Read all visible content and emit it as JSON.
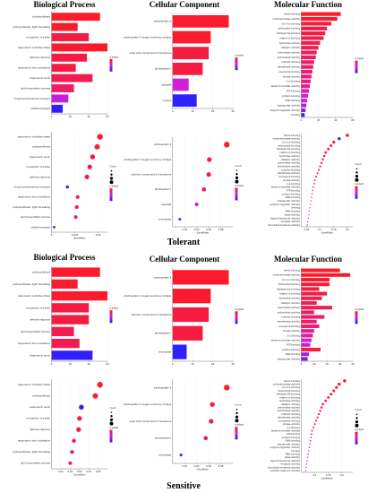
{
  "headings": {
    "biological_process": "Biological Process",
    "cellular_component": "Cellular Component",
    "molecular_function": "Molecular Function"
  },
  "group_labels": {
    "tolerant": "Tolerant",
    "sensitive": "Sensitive"
  },
  "axis_titles": {
    "bar_x": "",
    "dot_x": "GeneRatio"
  },
  "legend_titles": {
    "p": "p.adjust",
    "count": "Count"
  },
  "colors": {
    "gradient_high": "#ff1a1a",
    "gradient_mid": "#d31fd6",
    "gradient_low": "#1f1fff"
  },
  "chart_data": [
    {
      "id": "tol-bp-bar",
      "type": "bar",
      "orientation": "horizontal",
      "categories": [
        "photosynthesis",
        "photosynthesis, light harvesting",
        "recognition of pollen",
        "response to oxidative stress",
        "defense response",
        "response to toxic substance",
        "response to auxin",
        "lipid biosynthetic process",
        "drug transmembrane transport",
        "sulfate transport"
      ],
      "values": [
        52,
        28,
        40,
        60,
        38,
        26,
        44,
        24,
        18,
        12
      ],
      "color_levels": [
        0.95,
        0.95,
        0.9,
        0.95,
        0.9,
        0.9,
        0.85,
        0.8,
        0.45,
        0.05
      ],
      "xlim": [
        0,
        60
      ],
      "xticks": [
        0,
        20,
        40,
        60
      ]
    },
    {
      "id": "tol-cc-bar",
      "type": "bar",
      "orientation": "horizontal",
      "categories": [
        "photosystem II",
        "photosystem II oxygen evolving complex",
        "outer side component of membrane",
        "photosystem I",
        "apoplast",
        "nucleus"
      ],
      "values": [
        28,
        19,
        18,
        15,
        8,
        12
      ],
      "color_levels": [
        0.95,
        0.95,
        0.9,
        0.9,
        0.5,
        0.05
      ],
      "xlim": [
        0,
        30
      ],
      "xticks": [
        0,
        10,
        20,
        30
      ]
    },
    {
      "id": "tol-mf-bar",
      "type": "bar",
      "orientation": "horizontal",
      "categories": [
        "heme binding",
        "oxidoreductase activity",
        "iron ion binding",
        "chlorophyll binding",
        "tetrapyrrole binding",
        "metal ion binding",
        "hydrolase activity",
        "catalytic activity",
        "peroxidase activity",
        "antioxidant activity",
        "cofactor binding",
        "transferase activity",
        "coenzyme binding",
        "kinase activity",
        "ion binding",
        "electron transfer activity",
        "ATP binding",
        "protein binding",
        "DNA binding",
        "transporter activity",
        "enzyme regulator activity",
        "binding"
      ],
      "values": [
        46,
        42,
        35,
        30,
        28,
        26,
        22,
        20,
        18,
        17,
        15,
        14,
        13,
        12,
        11,
        10,
        9,
        8,
        7,
        6,
        5,
        4
      ],
      "color_levels": [
        0.95,
        0.95,
        0.9,
        0.9,
        0.9,
        0.85,
        0.85,
        0.85,
        0.8,
        0.8,
        0.8,
        0.8,
        0.75,
        0.75,
        0.7,
        0.7,
        0.6,
        0.55,
        0.5,
        0.4,
        0.3,
        0.1
      ],
      "xlim": [
        0,
        60
      ],
      "xticks": [
        0,
        20,
        40,
        60
      ]
    },
    {
      "id": "tol-bp-dot",
      "type": "scatter",
      "categories": [
        "response to oxidative stress",
        "photosynthesis",
        "response to auxin",
        "recognition of pollen",
        "defense response",
        "drug transmembrane transport",
        "response to toxic substance",
        "photosynthesis, light harvesting",
        "lipid biosynthetic process",
        "sulfate transport"
      ],
      "x": [
        0.052,
        0.049,
        0.044,
        0.041,
        0.038,
        0.017,
        0.028,
        0.027,
        0.026,
        0.0028
      ],
      "sizes": [
        60,
        52,
        44,
        40,
        38,
        18,
        26,
        28,
        24,
        12
      ],
      "color_levels": [
        0.95,
        0.95,
        0.9,
        0.9,
        0.9,
        0.1,
        0.85,
        0.8,
        0.75,
        0.15
      ],
      "xlim": [
        0,
        0.06
      ],
      "xticks": [
        0.0,
        0.025,
        0.05
      ]
    },
    {
      "id": "tol-cc-dot",
      "type": "scatter",
      "categories": [
        "photosystem II",
        "photosystem II oxygen evolving complex",
        "extrinsic component of membrane",
        "photosystem I",
        "apoplast",
        "chloroplast"
      ],
      "x": [
        0.09,
        0.061,
        0.06,
        0.052,
        0.04,
        0.012
      ],
      "sizes": [
        28,
        19,
        18,
        15,
        12,
        6
      ],
      "color_levels": [
        0.95,
        0.9,
        0.9,
        0.85,
        0.5,
        0.1
      ],
      "xlim": [
        0,
        0.1
      ],
      "xticks": [
        0.02,
        0.04,
        0.06,
        0.08
      ]
    },
    {
      "id": "tol-mf-dot",
      "type": "scatter",
      "categories": [
        "heme binding",
        "oxidoreductase activity",
        "iron ion binding",
        "chlorophyll binding",
        "tetrapyrrole binding",
        "metal ion binding",
        "hydrolase activity",
        "catalytic activity",
        "peroxidase activity",
        "antioxidant activity",
        "cofactor binding",
        "transferase activity",
        "coenzyme binding",
        "kinase activity",
        "ion binding",
        "electron transfer activity",
        "ATP binding",
        "protein binding",
        "DNA binding",
        "transporter activity",
        "enzyme regulator activity",
        "binding",
        "RNA binding",
        "lyase activity",
        "signal transducer activity",
        "receptor activity",
        "structural molecule activity"
      ],
      "x": [
        0.2,
        0.17,
        0.15,
        0.14,
        0.13,
        0.12,
        0.115,
        0.11,
        0.105,
        0.1,
        0.095,
        0.09,
        0.085,
        0.08,
        0.078,
        0.075,
        0.072,
        0.07,
        0.068,
        0.066,
        0.064,
        0.062,
        0.06,
        0.058,
        0.056,
        0.054,
        0.052
      ],
      "sizes": [
        46,
        42,
        35,
        30,
        28,
        26,
        22,
        20,
        18,
        17,
        15,
        14,
        13,
        12,
        11,
        10,
        9,
        8,
        7,
        7,
        6,
        6,
        5,
        5,
        4,
        4,
        4
      ],
      "color_levels": [
        0.95,
        0.1,
        0.95,
        0.9,
        0.9,
        0.9,
        0.85,
        0.85,
        0.85,
        0.8,
        0.8,
        0.8,
        0.8,
        0.75,
        0.75,
        0.75,
        0.7,
        0.7,
        0.7,
        0.65,
        0.65,
        0.6,
        0.6,
        0.55,
        0.5,
        0.5,
        0.45
      ],
      "xlim": [
        0.03,
        0.22
      ],
      "xticks": [
        0.05,
        0.1,
        0.15,
        0.2
      ]
    },
    {
      "id": "sen-bp-bar",
      "type": "bar",
      "orientation": "horizontal",
      "categories": [
        "photosynthesis",
        "photosynthesis, light harvesting",
        "response to oxidative stress",
        "recognition of pollen",
        "defense response",
        "lipid biosynthetic process",
        "response to toxic substance",
        "response to auxin"
      ],
      "values": [
        52,
        28,
        60,
        40,
        40,
        24,
        30,
        44
      ],
      "color_levels": [
        0.95,
        0.95,
        0.95,
        0.9,
        0.9,
        0.85,
        0.85,
        0.05
      ],
      "xlim": [
        0,
        60
      ],
      "xticks": [
        0,
        20,
        40,
        60
      ]
    },
    {
      "id": "sen-cc-bar",
      "type": "bar",
      "orientation": "horizontal",
      "categories": [
        "photosystem II",
        "photosystem II oxygen evolving complex",
        "extrinsic component of membrane",
        "photosystem I",
        "chloroplast"
      ],
      "values": [
        28,
        19,
        18,
        15,
        7
      ],
      "color_levels": [
        0.95,
        0.95,
        0.9,
        0.9,
        0.05
      ],
      "xlim": [
        0,
        30
      ],
      "xticks": [
        0,
        10,
        20,
        30
      ]
    },
    {
      "id": "sen-mf-bar",
      "type": "bar",
      "orientation": "horizontal",
      "categories": [
        "heme binding",
        "oxidoreductase activity",
        "iron ion binding",
        "chlorophyll binding",
        "tetrapyrrole binding",
        "metal ion binding",
        "hydrolase activity",
        "catalytic activity",
        "peroxidase activity",
        "antioxidant activity",
        "cofactor binding",
        "transferase activity",
        "coenzyme binding",
        "kinase activity",
        "ion binding",
        "electron transfer activity",
        "ATP binding",
        "protein binding",
        "DNA binding",
        "transporter activity"
      ],
      "values": [
        30,
        38,
        22,
        22,
        14,
        20,
        16,
        12,
        24,
        10,
        18,
        12,
        14,
        10,
        9,
        8,
        7,
        15,
        6,
        5
      ],
      "color_levels": [
        0.95,
        0.95,
        0.95,
        0.9,
        0.9,
        0.9,
        0.85,
        0.85,
        0.85,
        0.8,
        0.8,
        0.8,
        0.75,
        0.7,
        0.65,
        0.5,
        0.45,
        0.9,
        0.35,
        0.25
      ],
      "xlim": [
        0,
        40
      ],
      "xticks": [
        0,
        10,
        20,
        30,
        40
      ]
    },
    {
      "id": "sen-bp-dot",
      "type": "scatter",
      "categories": [
        "response to oxidative stress",
        "photosynthesis",
        "response to auxin",
        "recognition of pollen",
        "defense response",
        "response to toxic substance",
        "photosynthesis, light harvesting",
        "lipid biosynthetic process"
      ],
      "x": [
        0.052,
        0.047,
        0.032,
        0.03,
        0.029,
        0.024,
        0.022,
        0.02
      ],
      "sizes": [
        60,
        52,
        44,
        40,
        40,
        30,
        28,
        24
      ],
      "color_levels": [
        0.95,
        0.95,
        0.05,
        0.9,
        0.9,
        0.85,
        0.85,
        0.8
      ],
      "xlim": [
        0,
        0.06
      ],
      "xticks": [
        0.01,
        0.02,
        0.03,
        0.04,
        0.05
      ]
    },
    {
      "id": "sen-cc-dot",
      "type": "scatter",
      "categories": [
        "photosystem II",
        "photosystem II oxygen evolving complex",
        "outer side component of membrane",
        "photosystem I",
        "chloroplast"
      ],
      "x": [
        0.09,
        0.066,
        0.064,
        0.055,
        0.014
      ],
      "sizes": [
        28,
        19,
        18,
        15,
        7
      ],
      "color_levels": [
        0.95,
        0.9,
        0.9,
        0.85,
        0.05
      ],
      "xlim": [
        0,
        0.1
      ],
      "xticks": [
        0.02,
        0.04,
        0.06,
        0.08
      ]
    },
    {
      "id": "sen-mf-dot",
      "type": "scatter",
      "categories": [
        "heme binding",
        "oxidoreductase activity",
        "iron ion binding",
        "chlorophyll binding",
        "tetrapyrrole binding",
        "metal ion binding",
        "hydrolase activity",
        "catalytic activity",
        "peroxidase activity",
        "antioxidant activity",
        "cofactor binding",
        "transferase activity",
        "coenzyme binding",
        "kinase activity",
        "ion binding",
        "electron transfer activity",
        "ATP binding",
        "protein binding",
        "DNA binding",
        "transporter activity",
        "enzyme regulator activity",
        "binding",
        "RNA binding",
        "lyase activity",
        "signal transducer activity",
        "receptor activity",
        "structural molecule activity",
        "nutrient reservoir activity"
      ],
      "x": [
        0.21,
        0.19,
        0.18,
        0.17,
        0.16,
        0.15,
        0.14,
        0.13,
        0.125,
        0.12,
        0.115,
        0.11,
        0.105,
        0.1,
        0.095,
        0.09,
        0.088,
        0.086,
        0.084,
        0.082,
        0.08,
        0.078,
        0.076,
        0.074,
        0.072,
        0.07,
        0.068,
        0.066
      ],
      "sizes": [
        40,
        36,
        32,
        30,
        28,
        26,
        24,
        22,
        20,
        18,
        17,
        16,
        15,
        14,
        13,
        12,
        11,
        10,
        9,
        8,
        8,
        7,
        7,
        6,
        6,
        5,
        5,
        4
      ],
      "color_levels": [
        0.95,
        0.95,
        0.95,
        0.9,
        0.9,
        0.9,
        0.85,
        0.85,
        0.85,
        0.8,
        0.8,
        0.8,
        0.75,
        0.75,
        0.75,
        0.7,
        0.7,
        0.7,
        0.65,
        0.65,
        0.6,
        0.6,
        0.55,
        0.55,
        0.5,
        0.5,
        0.45,
        0.4
      ],
      "xlim": [
        0.05,
        0.24
      ],
      "xticks": [
        0.1,
        0.15,
        0.2
      ]
    }
  ]
}
